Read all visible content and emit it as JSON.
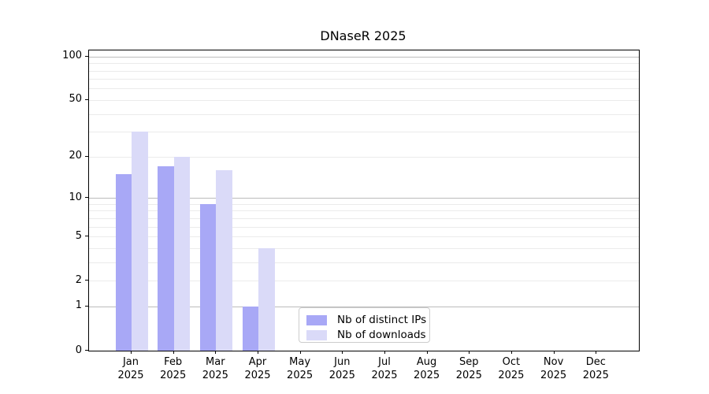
{
  "chart_data": {
    "type": "bar",
    "title": "DNaseR 2025",
    "categories": [
      "Jan",
      "Feb",
      "Mar",
      "Apr",
      "May",
      "Jun",
      "Jul",
      "Aug",
      "Sep",
      "Oct",
      "Nov",
      "Dec"
    ],
    "year_label": "2025",
    "series": [
      {
        "name": "Nb of distinct IPs",
        "color": "#a8a8f6",
        "values": [
          15,
          17,
          9,
          1,
          0,
          0,
          0,
          0,
          0,
          0,
          0,
          0
        ]
      },
      {
        "name": "Nb of downloads",
        "color": "#dadaf8",
        "values": [
          30,
          20,
          16,
          4,
          0,
          0,
          0,
          0,
          0,
          0,
          0,
          0
        ]
      }
    ],
    "xlabel": "",
    "ylabel": "",
    "yscale": "log1p",
    "ylim": [
      0,
      110
    ],
    "yticks": [
      0,
      1,
      2,
      5,
      10,
      20,
      50,
      100
    ],
    "major_gridlines": [
      1,
      10,
      100
    ],
    "minor_gridlines": [
      2,
      3,
      4,
      5,
      6,
      7,
      8,
      9,
      20,
      30,
      40,
      50,
      60,
      70,
      80,
      90
    ],
    "grid": "on",
    "legend_position": "lower center-right inside plot"
  },
  "colors": {
    "minor_grid": "#ebebeb",
    "major_grid": "#bcbcbc",
    "axis": "#000000",
    "legend_border": "#cccccc"
  }
}
